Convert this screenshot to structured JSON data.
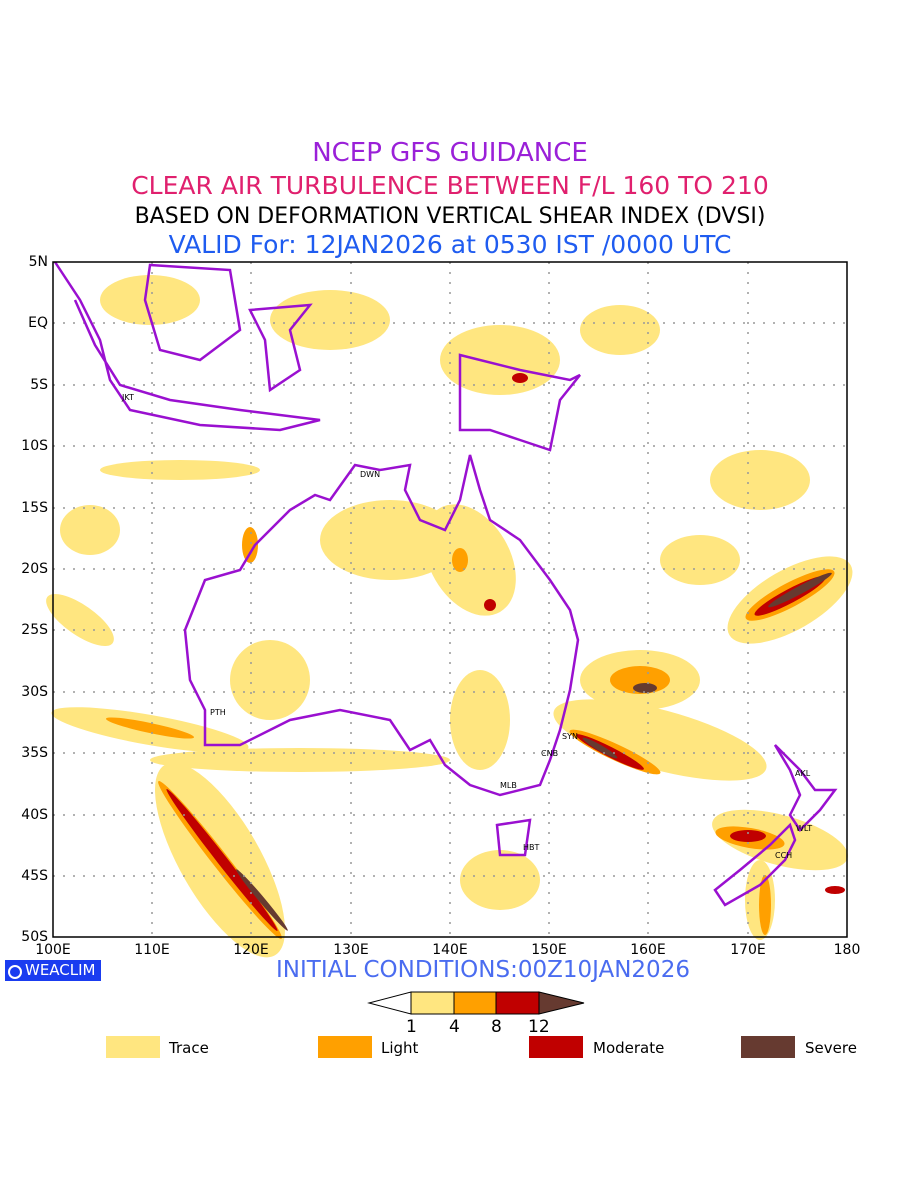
{
  "titles": {
    "line1": "NCEP GFS GUIDANCE",
    "line2": "CLEAR AIR TURBULENCE BETWEEN F/L 160 TO 210",
    "line3": "BASED ON DEFORMATION VERTICAL SHEAR INDEX (DVSI)",
    "line4": "VALID For: 12JAN2026 at 0530 IST /0000 UTC"
  },
  "axes": {
    "lat_labels": [
      "5N",
      "EQ",
      "5S",
      "10S",
      "15S",
      "20S",
      "25S",
      "30S",
      "35S",
      "40S",
      "45S",
      "50S"
    ],
    "lon_labels": [
      "100E",
      "110E",
      "120E",
      "130E",
      "140E",
      "150E",
      "160E",
      "170E",
      "180"
    ]
  },
  "cities": [
    "JKT",
    "DWN",
    "PTH",
    "SYN",
    "CNB",
    "MLB",
    "HBT",
    "AKL",
    "WLT",
    "CCH"
  ],
  "brand": "WEACLIM",
  "initial_conditions": "INITIAL CONDITIONS:00Z10JAN2026",
  "colorbar": {
    "ticks": [
      "1",
      "4",
      "8",
      "12"
    ]
  },
  "legend": [
    {
      "label": "Trace",
      "color": "#ffe680"
    },
    {
      "label": "Light",
      "color": "#ffa000"
    },
    {
      "label": "Moderate",
      "color": "#c00000"
    },
    {
      "label": "Severe",
      "color": "#663a30"
    }
  ],
  "colors": {
    "coast": "#9a10d0",
    "trace": "#ffe680",
    "light": "#ffa000",
    "moderate": "#c00000",
    "severe": "#663a30"
  }
}
